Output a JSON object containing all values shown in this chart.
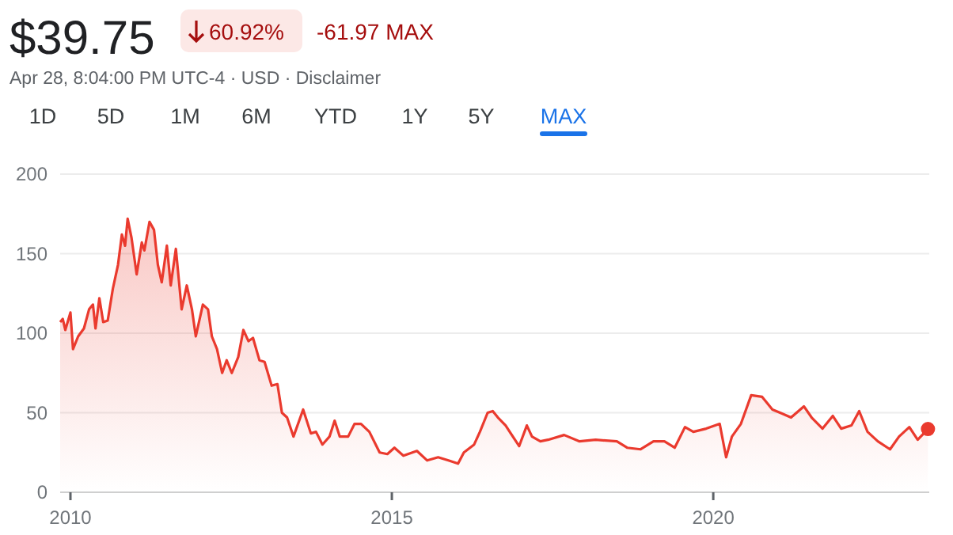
{
  "chart_data": {
    "type": "area",
    "title": "$39.75",
    "subtitle": "Apr 28, 8:04:00 PM UTC-4 · USD · Disclaimer",
    "annotations": [
      "60.92%",
      "-61.97 MAX",
      "1D",
      "5D",
      "1M",
      "6M",
      "YTD",
      "1Y",
      "5Y",
      "MAX"
    ],
    "xlim": [
      2009.84,
      2023.36
    ],
    "xticks": [
      2010,
      2015,
      2020
    ],
    "ylim": [
      0,
      200
    ],
    "yticks": [
      0,
      50,
      100,
      150,
      200
    ],
    "grid": "y",
    "series": [
      {
        "color": "#ea3a2e",
        "x": [
          2009.84,
          2009.88,
          2009.92,
          2010.0,
          2010.04,
          2010.12,
          2010.21,
          2010.29,
          2010.35,
          2010.39,
          2010.45,
          2010.51,
          2010.58,
          2010.66,
          2010.74,
          2010.8,
          2010.85,
          2010.89,
          2010.95,
          2011.03,
          2011.11,
          2011.15,
          2011.23,
          2011.3,
          2011.36,
          2011.42,
          2011.5,
          2011.56,
          2011.64,
          2011.73,
          2011.81,
          2011.89,
          2011.95,
          2012.06,
          2012.14,
          2012.2,
          2012.28,
          2012.36,
          2012.43,
          2012.51,
          2012.61,
          2012.69,
          2012.77,
          2012.84,
          2012.94,
          2013.02,
          2013.13,
          2013.22,
          2013.29,
          2013.37,
          2013.47,
          2013.62,
          2013.74,
          2013.82,
          2013.92,
          2014.03,
          2014.11,
          2014.19,
          2014.32,
          2014.42,
          2014.52,
          2014.65,
          2014.81,
          2014.93,
          2015.04,
          2015.18,
          2015.39,
          2015.55,
          2015.72,
          2015.88,
          2016.03,
          2016.12,
          2016.28,
          2016.37,
          2016.49,
          2016.57,
          2016.65,
          2016.77,
          2016.85,
          2016.98,
          2017.1,
          2017.18,
          2017.31,
          2017.43,
          2017.68,
          2017.92,
          2018.17,
          2018.5,
          2018.66,
          2018.87,
          2019.07,
          2019.24,
          2019.4,
          2019.56,
          2019.69,
          2019.89,
          2020.1,
          2020.2,
          2020.29,
          2020.43,
          2020.59,
          2020.76,
          2020.92,
          2021.04,
          2021.21,
          2021.41,
          2021.53,
          2021.7,
          2021.86,
          2021.99,
          2022.15,
          2022.27,
          2022.4,
          2022.56,
          2022.75,
          2022.89,
          2023.05,
          2023.18,
          2023.34
        ],
        "values": [
          107,
          109,
          102,
          113,
          90,
          98,
          103,
          115,
          118,
          103,
          122,
          107,
          108,
          128,
          143,
          162,
          155,
          172,
          160,
          137,
          157,
          152,
          170,
          165,
          143,
          132,
          155,
          130,
          153,
          115,
          130,
          115,
          98,
          118,
          115,
          98,
          90,
          75,
          83,
          75,
          85,
          102,
          95,
          97,
          83,
          82,
          67,
          68,
          50,
          47,
          35,
          52,
          37,
          38,
          30,
          35,
          45,
          35,
          35,
          43,
          43,
          38,
          25,
          24,
          28,
          23,
          26,
          20,
          22,
          20,
          18,
          25,
          30,
          38,
          50,
          51,
          47,
          42,
          37,
          29,
          42,
          35,
          32,
          33,
          36,
          32,
          33,
          32,
          28,
          27,
          32,
          32,
          28,
          41,
          38,
          40,
          43,
          22,
          35,
          43,
          61,
          60,
          52,
          50,
          47,
          54,
          47,
          40,
          48,
          40,
          42,
          51,
          38,
          32,
          27,
          35,
          41,
          33,
          39.75
        ]
      },
      {
        "type": "scatter",
        "color": "#ea3a2e",
        "x": [
          2023.34
        ],
        "values": [
          39.75
        ]
      }
    ]
  }
}
